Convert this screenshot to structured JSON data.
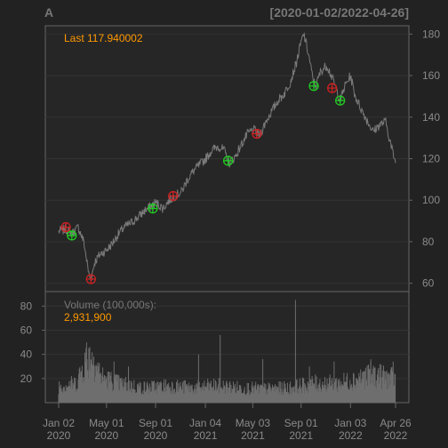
{
  "chart_data": {
    "type": "line",
    "symbol": "A",
    "date_range": "[2020-01-02/2022-04-26]",
    "last_label": "Last 117.940002",
    "price": {
      "ylim": [
        56,
        184
      ],
      "yticks": [
        60,
        80,
        100,
        120,
        140,
        160,
        180
      ],
      "series_points": [
        [
          "2020-01-02",
          85
        ],
        [
          "2020-01-20",
          86
        ],
        [
          "2020-02-05",
          84
        ],
        [
          "2020-02-20",
          87
        ],
        [
          "2020-03-05",
          80
        ],
        [
          "2020-03-18",
          64
        ],
        [
          "2020-03-23",
          62
        ],
        [
          "2020-04-01",
          70
        ],
        [
          "2020-04-15",
          74
        ],
        [
          "2020-05-01",
          76
        ],
        [
          "2020-05-15",
          79
        ],
        [
          "2020-06-01",
          84
        ],
        [
          "2020-06-15",
          87
        ],
        [
          "2020-07-01",
          89
        ],
        [
          "2020-07-20",
          92
        ],
        [
          "2020-08-05",
          95
        ],
        [
          "2020-08-20",
          97
        ],
        [
          "2020-09-01",
          99
        ],
        [
          "2020-09-20",
          96
        ],
        [
          "2020-10-05",
          100
        ],
        [
          "2020-10-20",
          102
        ],
        [
          "2020-11-05",
          104
        ],
        [
          "2020-11-20",
          110
        ],
        [
          "2020-12-05",
          114
        ],
        [
          "2020-12-20",
          117
        ],
        [
          "2021-01-05",
          120
        ],
        [
          "2021-01-20",
          124
        ],
        [
          "2021-02-05",
          126
        ],
        [
          "2021-02-20",
          124
        ],
        [
          "2021-03-05",
          118
        ],
        [
          "2021-03-20",
          121
        ],
        [
          "2021-04-05",
          127
        ],
        [
          "2021-04-20",
          132
        ],
        [
          "2021-05-05",
          134
        ],
        [
          "2021-05-20",
          131
        ],
        [
          "2021-06-05",
          138
        ],
        [
          "2021-06-20",
          143
        ],
        [
          "2021-07-05",
          148
        ],
        [
          "2021-07-20",
          151
        ],
        [
          "2021-08-05",
          157
        ],
        [
          "2021-08-20",
          166
        ],
        [
          "2021-09-01",
          176
        ],
        [
          "2021-09-08",
          180
        ],
        [
          "2021-09-20",
          170
        ],
        [
          "2021-10-01",
          158
        ],
        [
          "2021-10-08",
          155
        ],
        [
          "2021-10-20",
          162
        ],
        [
          "2021-11-05",
          165
        ],
        [
          "2021-11-20",
          158
        ],
        [
          "2021-12-01",
          152
        ],
        [
          "2021-12-08",
          148
        ],
        [
          "2021-12-20",
          155
        ],
        [
          "2022-01-03",
          160
        ],
        [
          "2022-01-15",
          150
        ],
        [
          "2022-02-01",
          143
        ],
        [
          "2022-02-15",
          138
        ],
        [
          "2022-03-01",
          133
        ],
        [
          "2022-03-15",
          136
        ],
        [
          "2022-04-01",
          138
        ],
        [
          "2022-04-15",
          126
        ],
        [
          "2022-04-26",
          117.94
        ]
      ],
      "buy_signals": [
        [
          "2020-02-04",
          83
        ],
        [
          "2020-08-25",
          96
        ],
        [
          "2021-03-02",
          119
        ],
        [
          "2021-10-03",
          155
        ],
        [
          "2021-12-08",
          148
        ]
      ],
      "sell_signals": [
        [
          "2020-01-20",
          87
        ],
        [
          "2020-03-23",
          62
        ],
        [
          "2020-10-15",
          102
        ],
        [
          "2021-05-13",
          132
        ],
        [
          "2021-11-18",
          154
        ]
      ]
    },
    "volume": {
      "label": "Volume (100,000s):",
      "last_value": "2,931,900",
      "ylim": [
        0,
        92
      ],
      "yticks": [
        20,
        40,
        60,
        80
      ],
      "envelope": [
        [
          "2020-01-02",
          16
        ],
        [
          "2020-02-15",
          18
        ],
        [
          "2020-03-10",
          40
        ],
        [
          "2020-03-25",
          42
        ],
        [
          "2020-04-20",
          24
        ],
        [
          "2020-06-01",
          18
        ],
        [
          "2020-08-01",
          14
        ],
        [
          "2020-10-01",
          16
        ],
        [
          "2020-12-01",
          14
        ],
        [
          "2021-02-01",
          16
        ],
        [
          "2021-04-01",
          14
        ],
        [
          "2021-06-01",
          13
        ],
        [
          "2021-08-01",
          14
        ],
        [
          "2021-10-01",
          18
        ],
        [
          "2021-12-01",
          18
        ],
        [
          "2022-02-01",
          24
        ],
        [
          "2022-03-01",
          26
        ],
        [
          "2022-04-26",
          22
        ]
      ],
      "spikes": [
        [
          "2020-03-12",
          50
        ],
        [
          "2020-03-20",
          46
        ],
        [
          "2020-03-30",
          38
        ],
        [
          "2020-05-20",
          34
        ],
        [
          "2020-06-25",
          30
        ],
        [
          "2020-12-18",
          40
        ],
        [
          "2021-02-10",
          56
        ],
        [
          "2021-05-28",
          36
        ],
        [
          "2021-08-18",
          85
        ],
        [
          "2021-09-22",
          30
        ],
        [
          "2021-11-23",
          34
        ],
        [
          "2022-02-23",
          36
        ],
        [
          "2022-03-18",
          32
        ],
        [
          "2022-04-20",
          34
        ]
      ]
    },
    "x_ticks": [
      {
        "date": "2020-01-02",
        "line1": "Jan 02",
        "line2": "2020"
      },
      {
        "date": "2020-05-01",
        "line1": "May 01",
        "line2": "2020"
      },
      {
        "date": "2020-09-01",
        "line1": "Sep 01",
        "line2": "2020"
      },
      {
        "date": "2021-01-04",
        "line1": "Jan 04",
        "line2": "2021"
      },
      {
        "date": "2021-05-03",
        "line1": "May 03",
        "line2": "2021"
      },
      {
        "date": "2021-09-01",
        "line1": "Sep 01",
        "line2": "2021"
      },
      {
        "date": "2022-01-03",
        "line1": "Jan 03",
        "line2": "2022"
      },
      {
        "date": "2022-04-26",
        "line1": "Apr 26",
        "line2": "2022"
      }
    ],
    "colors": {
      "background": "#222222",
      "panel": "#262626",
      "frame": "#666666",
      "grid": "#333333",
      "axis_text": "#8a8a8a",
      "title_text": "#777777",
      "price_line": "#7a7a7a",
      "volume_bar": "#6e6e6e",
      "highlight": "#ff9900",
      "buy": "#22cc22",
      "sell": "#cc2222"
    }
  }
}
